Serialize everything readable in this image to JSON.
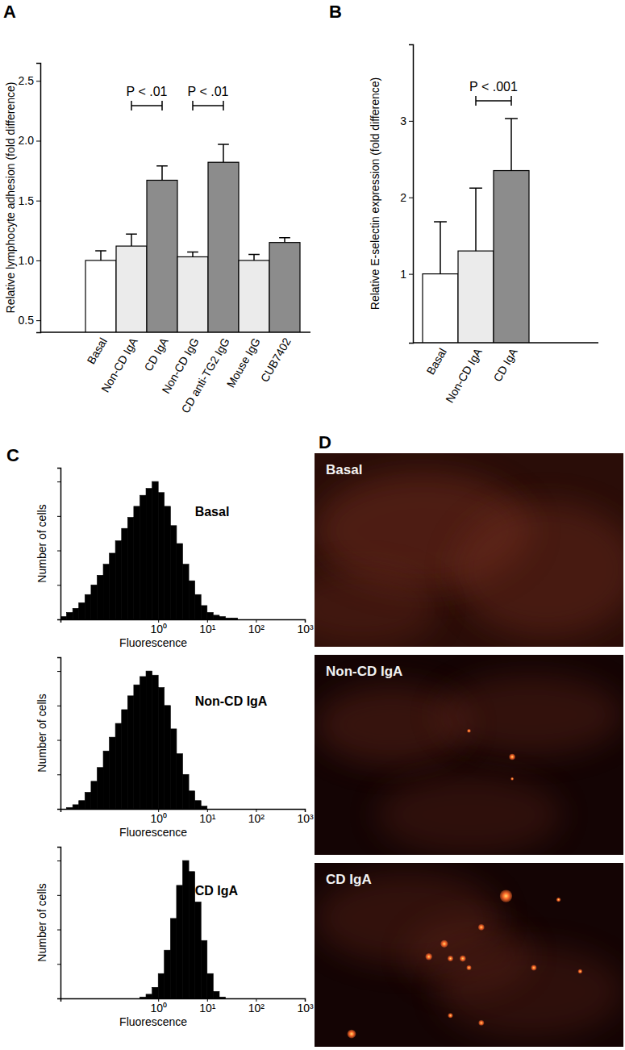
{
  "chart_data": [
    {
      "type": "bar",
      "title": "A",
      "categories": [
        "Basal",
        "Non-CD IgA",
        "CD IgA",
        "Non-CD IgG",
        "CD anti-TG2 IgG",
        "Mouse IgG",
        "CUB7402"
      ],
      "values": [
        1.0,
        1.12,
        1.67,
        1.03,
        1.82,
        1.0,
        1.15
      ],
      "errors": [
        0.08,
        0.1,
        0.12,
        0.04,
        0.15,
        0.05,
        0.04
      ],
      "colors": [
        "#ffffff",
        "#ebebeb",
        "#8c8c8c",
        "#ebebeb",
        "#8c8c8c",
        "#ebebeb",
        "#8c8c8c"
      ],
      "ylim": [
        0.4,
        2.65
      ],
      "yticks": [
        0.5,
        {
          "value": 1,
          "label": "1.0"
        },
        1.5,
        {
          "value": 2,
          "label": "2.0"
        },
        2.5
      ],
      "y_label": "Relative lymphocyte adhesion (fold difference)",
      "annotations": [
        {
          "text": "P < .01",
          "between": [
            "Non-CD IgA",
            "CD IgA"
          ]
        },
        {
          "text": "P < .01",
          "between": [
            "Non-CD IgG",
            "CD anti-TG2 IgG"
          ]
        }
      ]
    },
    {
      "type": "bar",
      "title": "B",
      "categories": [
        "Basal",
        "Non-CD IgA",
        "CD IgA"
      ],
      "values": [
        1.0,
        1.3,
        2.35
      ],
      "errors": [
        0.68,
        0.82,
        0.68
      ],
      "colors": [
        "#ffffff",
        "#ebebeb",
        "#8c8c8c"
      ],
      "ylim": [
        0.1,
        4.0
      ],
      "yticks": [
        1,
        2,
        3
      ],
      "y_label": "Relative E-selectin expression (fold difference)",
      "annotations": [
        {
          "text": "P < .001",
          "between": [
            "Non-CD IgA",
            "CD IgA"
          ]
        }
      ]
    },
    {
      "type": "histogram",
      "title": "C",
      "log": "x",
      "tick_labels": "x",
      "x_label": "Fluorescence",
      "y_label": "Number of cells",
      "color": "#000000",
      "bins": [
        0.01,
        0.0133,
        0.0178,
        0.0237,
        0.0316,
        0.0422,
        0.0562,
        0.075,
        0.1,
        0.133,
        0.178,
        0.237,
        0.316,
        0.422,
        0.562,
        0.75,
        1,
        1.33,
        1.78,
        2.37,
        3.16,
        4.22,
        5.62,
        7.5,
        10,
        13.3,
        17.8,
        23.7,
        31.6,
        42.2,
        56.2,
        75,
        100
      ],
      "xlim": [
        0.01,
        1000
      ],
      "xticks": [
        {
          "value": 1,
          "label": "10⁰"
        },
        {
          "value": 10,
          "label": "10¹"
        },
        {
          "value": 100,
          "label": "10²"
        },
        {
          "value": 1000,
          "label": "10³"
        }
      ],
      "ylim": [
        0,
        110
      ],
      "yticks": [
        0,
        25,
        50,
        75,
        100
      ],
      "series": [
        {
          "name": "Basal",
          "values": [
            2,
            5,
            8,
            12,
            18,
            25,
            32,
            40,
            48,
            57,
            66,
            74,
            82,
            90,
            95,
            100,
            92,
            82,
            68,
            55,
            40,
            28,
            18,
            10,
            5,
            3,
            2,
            1,
            1,
            0,
            0,
            0
          ]
        },
        {
          "name": "Non-CD IgA",
          "values": [
            0,
            1,
            3,
            6,
            12,
            20,
            30,
            42,
            52,
            62,
            72,
            82,
            90,
            96,
            100,
            97,
            88,
            75,
            58,
            40,
            25,
            13,
            6,
            2,
            0,
            0,
            0,
            0,
            0,
            0,
            0,
            0
          ]
        },
        {
          "name": "CD IgA",
          "values": [
            0,
            0,
            0,
            0,
            0,
            0,
            0,
            0,
            0,
            0,
            0,
            0,
            0,
            1,
            3,
            8,
            18,
            35,
            58,
            82,
            100,
            92,
            70,
            42,
            18,
            5,
            1,
            0,
            0,
            0,
            0,
            0
          ]
        }
      ]
    },
    {
      "type": "image",
      "title": "D",
      "color": "#ff6a2a",
      "images": [
        {
          "label": "Basal",
          "spots": []
        },
        {
          "label": "Non-CD IgA",
          "spots": [
            {
              "x": 0.5,
              "y": 0.38,
              "size": 0.006
            },
            {
              "x": 0.64,
              "y": 0.51,
              "size": 0.01
            },
            {
              "x": 0.64,
              "y": 0.62,
              "size": 0.005
            }
          ]
        },
        {
          "label": "CD IgA",
          "spots": [
            {
              "x": 0.62,
              "y": 0.18,
              "size": 0.02
            },
            {
              "x": 0.79,
              "y": 0.2,
              "size": 0.007
            },
            {
              "x": 0.54,
              "y": 0.35,
              "size": 0.01
            },
            {
              "x": 0.42,
              "y": 0.44,
              "size": 0.012
            },
            {
              "x": 0.37,
              "y": 0.51,
              "size": 0.011
            },
            {
              "x": 0.44,
              "y": 0.52,
              "size": 0.009
            },
            {
              "x": 0.48,
              "y": 0.52,
              "size": 0.01
            },
            {
              "x": 0.5,
              "y": 0.57,
              "size": 0.008
            },
            {
              "x": 0.71,
              "y": 0.57,
              "size": 0.009
            },
            {
              "x": 0.86,
              "y": 0.59,
              "size": 0.007
            },
            {
              "x": 0.44,
              "y": 0.83,
              "size": 0.008
            },
            {
              "x": 0.12,
              "y": 0.93,
              "size": 0.014
            },
            {
              "x": 0.54,
              "y": 0.87,
              "size": 0.009
            }
          ]
        }
      ]
    }
  ]
}
